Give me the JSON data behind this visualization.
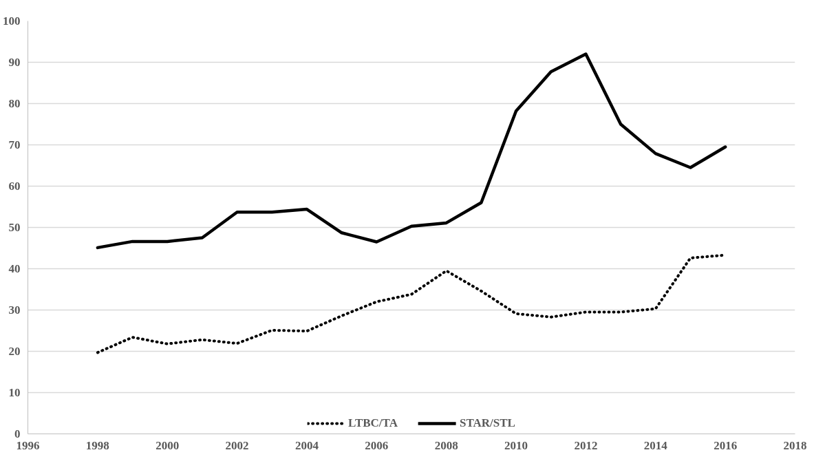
{
  "chart_data": {
    "type": "line",
    "x": [
      1998,
      1999,
      2000,
      2001,
      2002,
      2003,
      2004,
      2005,
      2006,
      2007,
      2008,
      2009,
      2010,
      2011,
      2012,
      2013,
      2014,
      2015,
      2016
    ],
    "series": [
      {
        "name": "LTBC/TA",
        "color": "#000000",
        "line_style": "dotted",
        "values": [
          19.7,
          23.4,
          21.8,
          22.8,
          21.9,
          25.1,
          24.9,
          28.6,
          32,
          33.8,
          39.5,
          34.6,
          29.1,
          28.3,
          29.5,
          29.5,
          30.3,
          42.6,
          43.3
        ]
      },
      {
        "name": "STAR/STL",
        "color": "#000000",
        "line_style": "solid",
        "values": [
          45.1,
          46.6,
          46.6,
          47.5,
          53.7,
          53.7,
          54.4,
          48.7,
          46.5,
          50.3,
          51.1,
          56,
          78.2,
          87.7,
          92,
          75,
          67.9,
          64.5,
          69.5
        ]
      }
    ],
    "xlim": [
      1996,
      2018
    ],
    "xticks": [
      1996,
      1998,
      2000,
      2002,
      2004,
      2006,
      2008,
      2010,
      2012,
      2014,
      2016,
      2018
    ],
    "ylim": [
      0,
      100
    ],
    "yticks": [
      0,
      10,
      20,
      30,
      40,
      50,
      60,
      70,
      80,
      90,
      100
    ],
    "grid": "y",
    "legend": "bottom",
    "marker": "none"
  }
}
